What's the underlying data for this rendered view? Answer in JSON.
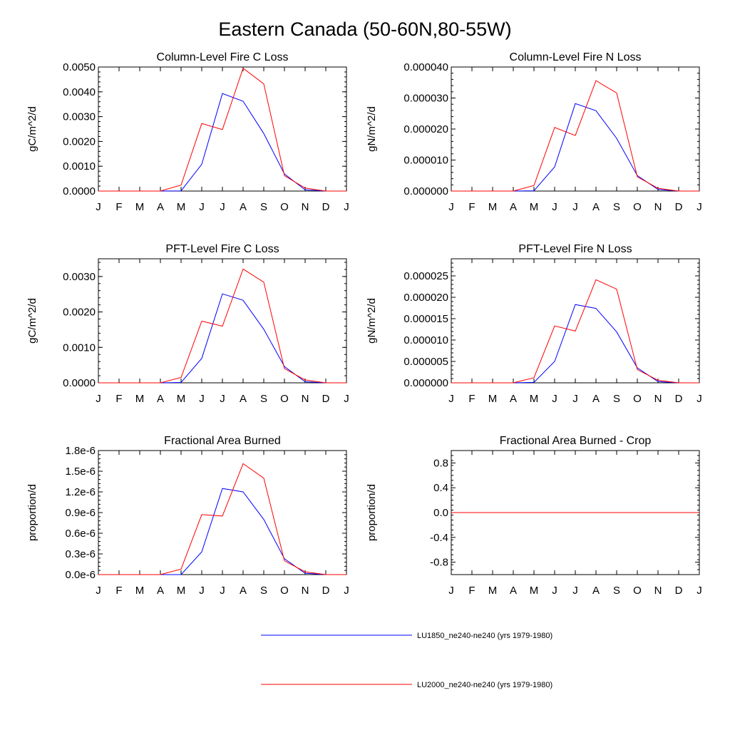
{
  "figure": {
    "title": "Eastern Canada (50-60N,80-55W)"
  },
  "colors": {
    "series1": "#0000ff",
    "series2": "#ff0000",
    "axis": "#000000"
  },
  "legend": [
    {
      "label": "LU1850_ne240-ne240 (yrs 1979-1980)",
      "color": "#0000ff"
    },
    {
      "label": "LU2000_ne240-ne240 (yrs 1979-1980)",
      "color": "#ff0000"
    }
  ],
  "chart_data": [
    {
      "type": "line",
      "title": "Column-Level Fire C Loss",
      "xlabel": "",
      "ylabel": "gC/m^2/d",
      "categories": [
        "J",
        "F",
        "M",
        "A",
        "M",
        "J",
        "J",
        "A",
        "S",
        "O",
        "N",
        "D",
        "J"
      ],
      "ylim": [
        0,
        0.005
      ],
      "yticks": [
        "0.0000",
        "0.0010",
        "0.0020",
        "0.0030",
        "0.0040",
        "0.0050"
      ],
      "ytick_values": [
        0,
        0.001,
        0.002,
        0.003,
        0.004,
        0.005
      ],
      "grid": false,
      "series": [
        {
          "name": "LU1850_ne240-ne240 (yrs 1979-1980)",
          "values": [
            0,
            0,
            0,
            0,
            1e-05,
            0.00108,
            0.00393,
            0.00362,
            0.00232,
            0.00069,
            5e-05,
            0,
            0
          ]
        },
        {
          "name": "LU2000_ne240-ne240 (yrs 1979-1980)",
          "values": [
            0,
            0,
            0,
            0,
            0.00024,
            0.00272,
            0.00248,
            0.00495,
            0.00432,
            0.00062,
            0.00012,
            0,
            0
          ]
        }
      ]
    },
    {
      "type": "line",
      "title": "Column-Level Fire N Loss",
      "xlabel": "",
      "ylabel": "gN/m^2/d",
      "categories": [
        "J",
        "F",
        "M",
        "A",
        "M",
        "J",
        "J",
        "A",
        "S",
        "O",
        "N",
        "D",
        "J"
      ],
      "ylim": [
        0,
        4e-05
      ],
      "yticks": [
        "0.000000",
        "0.000010",
        "0.000020",
        "0.000030",
        "0.000040"
      ],
      "ytick_values": [
        0,
        1e-05,
        2e-05,
        3e-05,
        4e-05
      ],
      "grid": false,
      "series": [
        {
          "name": "LU1850_ne240-ne240 (yrs 1979-1980)",
          "values": [
            0,
            0,
            0,
            0,
            1e-07,
            7.8e-06,
            2.82e-05,
            2.59e-05,
            1.7e-05,
            5e-06,
            5e-07,
            0,
            0
          ]
        },
        {
          "name": "LU2000_ne240-ne240 (yrs 1979-1980)",
          "values": [
            0,
            0,
            0,
            0,
            1.8e-06,
            2.05e-05,
            1.79e-05,
            3.56e-05,
            3.16e-05,
            4.6e-06,
            9e-07,
            0,
            0
          ]
        }
      ]
    },
    {
      "type": "line",
      "title": "PFT-Level Fire C Loss",
      "xlabel": "",
      "ylabel": "gC/m^2/d",
      "categories": [
        "J",
        "F",
        "M",
        "A",
        "M",
        "J",
        "J",
        "A",
        "S",
        "O",
        "N",
        "D",
        "J"
      ],
      "ylim": [
        0,
        0.0035
      ],
      "yticks": [
        "0.0000",
        "0.0010",
        "0.0020",
        "0.0030"
      ],
      "ytick_values": [
        0,
        0.001,
        0.002,
        0.003
      ],
      "grid": false,
      "series": [
        {
          "name": "LU1850_ne240-ne240 (yrs 1979-1980)",
          "values": [
            0,
            0,
            0,
            0,
            1e-05,
            0.00069,
            0.00251,
            0.00233,
            0.00151,
            0.00046,
            3e-05,
            0,
            0
          ]
        },
        {
          "name": "LU2000_ne240-ne240 (yrs 1979-1980)",
          "values": [
            0,
            0,
            0,
            0,
            0.00015,
            0.00174,
            0.0016,
            0.00321,
            0.00284,
            0.0004,
            8e-05,
            0,
            0
          ]
        }
      ]
    },
    {
      "type": "line",
      "title": "PFT-Level Fire N Loss",
      "xlabel": "",
      "ylabel": "gN/m^2/d",
      "categories": [
        "J",
        "F",
        "M",
        "A",
        "M",
        "J",
        "J",
        "A",
        "S",
        "O",
        "N",
        "D",
        "J"
      ],
      "ylim": [
        0,
        2.9e-05
      ],
      "yticks": [
        "0.000000",
        "0.000005",
        "0.000010",
        "0.000015",
        "0.000020",
        "0.000025"
      ],
      "ytick_values": [
        0,
        5e-06,
        1e-05,
        1.5e-05,
        2e-05,
        2.5e-05
      ],
      "grid": false,
      "series": [
        {
          "name": "LU1850_ne240-ne240 (yrs 1979-1980)",
          "values": [
            0,
            0,
            0,
            0,
            1e-07,
            5e-06,
            1.83e-05,
            1.74e-05,
            1.19e-05,
            3.5e-06,
            3e-07,
            0,
            0
          ]
        },
        {
          "name": "LU2000_ne240-ne240 (yrs 1979-1980)",
          "values": [
            0,
            0,
            0,
            0,
            1.2e-06,
            1.33e-05,
            1.21e-05,
            2.41e-05,
            2.19e-05,
            3.1e-06,
            6e-07,
            0,
            0
          ]
        }
      ]
    },
    {
      "type": "line",
      "title": "Fractional Area Burned",
      "xlabel": "",
      "ylabel": "proportion/d",
      "categories": [
        "J",
        "F",
        "M",
        "A",
        "M",
        "J",
        "J",
        "A",
        "S",
        "O",
        "N",
        "D",
        "J"
      ],
      "ylim": [
        0,
        1.8e-06
      ],
      "yticks": [
        "0.0e-6",
        "0.3e-6",
        "0.6e-6",
        "0.9e-6",
        "1.2e-6",
        "1.5e-6",
        "1.8e-6"
      ],
      "ytick_values": [
        0,
        3e-07,
        6e-07,
        9e-07,
        1.2e-06,
        1.5e-06,
        1.8e-06
      ],
      "grid": false,
      "series": [
        {
          "name": "LU1850_ne240-ne240 (yrs 1979-1980)",
          "values": [
            0,
            0,
            0,
            0,
            0.0,
            3.3e-07,
            1.25e-06,
            1.2e-06,
            8e-07,
            2.3e-07,
            2e-08,
            0,
            0
          ]
        },
        {
          "name": "LU2000_ne240-ne240 (yrs 1979-1980)",
          "values": [
            0,
            0,
            0,
            0,
            8e-08,
            8.7e-07,
            8.5e-07,
            1.61e-06,
            1.4e-06,
            2e-07,
            4e-08,
            0,
            0
          ]
        }
      ]
    },
    {
      "type": "line",
      "title": "Fractional Area Burned - Crop",
      "xlabel": "",
      "ylabel": "proportion/d",
      "categories": [
        "J",
        "F",
        "M",
        "A",
        "M",
        "J",
        "J",
        "A",
        "S",
        "O",
        "N",
        "D",
        "J"
      ],
      "ylim": [
        -1,
        1
      ],
      "yticks": [
        "-0.8",
        "-0.4",
        "0.0",
        "0.4",
        "0.8"
      ],
      "ytick_values": [
        -0.8,
        -0.4,
        0,
        0.4,
        0.8
      ],
      "grid": false,
      "series": [
        {
          "name": "LU1850_ne240-ne240 (yrs 1979-1980)",
          "values": [
            0,
            0,
            0,
            0,
            0,
            0,
            0,
            0,
            0,
            0,
            0,
            0,
            0
          ]
        },
        {
          "name": "LU2000_ne240-ne240 (yrs 1979-1980)",
          "values": [
            0,
            0,
            0,
            0,
            0,
            0,
            0,
            0,
            0,
            0,
            0,
            0,
            0
          ]
        }
      ]
    }
  ]
}
